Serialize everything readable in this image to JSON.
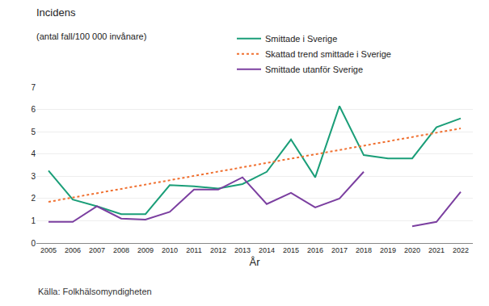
{
  "chart_data": {
    "type": "line",
    "title": "Incidens",
    "subtitle": "(antal fall/100 000 invånare)",
    "xlabel": "År",
    "x": [
      2005,
      2006,
      2007,
      2008,
      2009,
      2010,
      2011,
      2012,
      2013,
      2014,
      2015,
      2016,
      2017,
      2018,
      2019,
      2020,
      2021,
      2022
    ],
    "series": [
      {
        "name": "Smittade i Sverige",
        "color": "#1a9e78",
        "line_style": "solid",
        "values": [
          3.25,
          1.95,
          1.65,
          1.3,
          1.3,
          2.6,
          2.55,
          2.45,
          2.65,
          3.2,
          4.65,
          2.95,
          6.15,
          3.95,
          3.8,
          3.8,
          5.2,
          5.6
        ]
      },
      {
        "name": "Skattad trend smittade i Sverige",
        "color": "#f07030",
        "line_style": "dotted",
        "x": [
          2005,
          2022
        ],
        "values": [
          1.85,
          5.15
        ]
      },
      {
        "name": "Smittade utanför Sverige",
        "color": "#7b3fa0",
        "line_style": "solid",
        "values": [
          0.95,
          0.95,
          1.65,
          1.1,
          1.05,
          1.4,
          2.4,
          2.4,
          2.95,
          1.75,
          2.25,
          1.6,
          2.0,
          3.2,
          null,
          0.75,
          0.95,
          2.3
        ]
      }
    ],
    "xlim": [
      2004.5,
      2022.5
    ],
    "xticks": [
      2005,
      2006,
      2007,
      2008,
      2009,
      2010,
      2011,
      2012,
      2013,
      2014,
      2015,
      2016,
      2017,
      2018,
      2019,
      2020,
      2021,
      2022
    ],
    "ylim": [
      0,
      7
    ],
    "yticks": [
      0,
      1,
      2,
      3,
      4,
      5,
      6,
      7
    ],
    "grid": true,
    "legend": "top",
    "annotations": [
      "Källa: Folkhälsomyndigheten"
    ]
  }
}
